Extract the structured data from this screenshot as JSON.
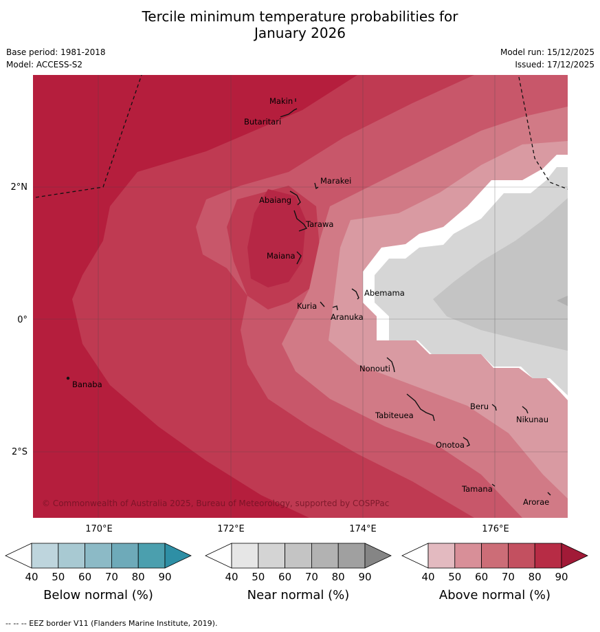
{
  "title_line1": "Tercile minimum temperature probabilities for",
  "title_line2": "January 2026",
  "base_period": "Base period: 1981-2018",
  "model": "Model: ACCESS-S2",
  "model_run": "Model run: 15/12/2025",
  "issued": "Issued: 17/12/2025",
  "copyright": "© Commonwealth of Australia 2025, Bureau of Meteorology, supported by COSPPac",
  "axes": {
    "lon_ticks": [
      "170°E",
      "172°E",
      "174°E",
      "176°E"
    ],
    "lat_ticks": [
      "2°N",
      "0°",
      "2°S"
    ]
  },
  "places": [
    "Makin",
    "Butaritari",
    "Marakei",
    "Abaiang",
    "Tarawa",
    "Maiana",
    "Abemama",
    "Kuria",
    "Aranuka",
    "Banaba",
    "Nonouti",
    "Beru",
    "Tabiteuea",
    "Nikunau",
    "Onotoa",
    "Tamana",
    "Arorae"
  ],
  "colorbars": [
    {
      "label": "Below normal (%)",
      "ticks": [
        "40",
        "50",
        "60",
        "70",
        "80",
        "90"
      ],
      "colors": [
        "#bed5dd",
        "#a8c9d2",
        "#8cbac6",
        "#6eaab9",
        "#4b9fae",
        "#2e8fa5"
      ]
    },
    {
      "label": "Near normal (%)",
      "ticks": [
        "40",
        "50",
        "60",
        "70",
        "80",
        "90"
      ],
      "colors": [
        "#e6e6e6",
        "#d4d4d4",
        "#c4c4c4",
        "#b2b2b2",
        "#a0a0a0",
        "#858585"
      ]
    },
    {
      "label": "Above normal (%)",
      "ticks": [
        "40",
        "50",
        "60",
        "70",
        "80",
        "90"
      ],
      "colors": [
        "#e3bac0",
        "#d88f98",
        "#cc6d77",
        "#c35060",
        "#b72c45",
        "#a11a37"
      ]
    }
  ],
  "footer": "--  --  -- EEZ border V11 (Flanders Marine Institute, 2019)."
}
